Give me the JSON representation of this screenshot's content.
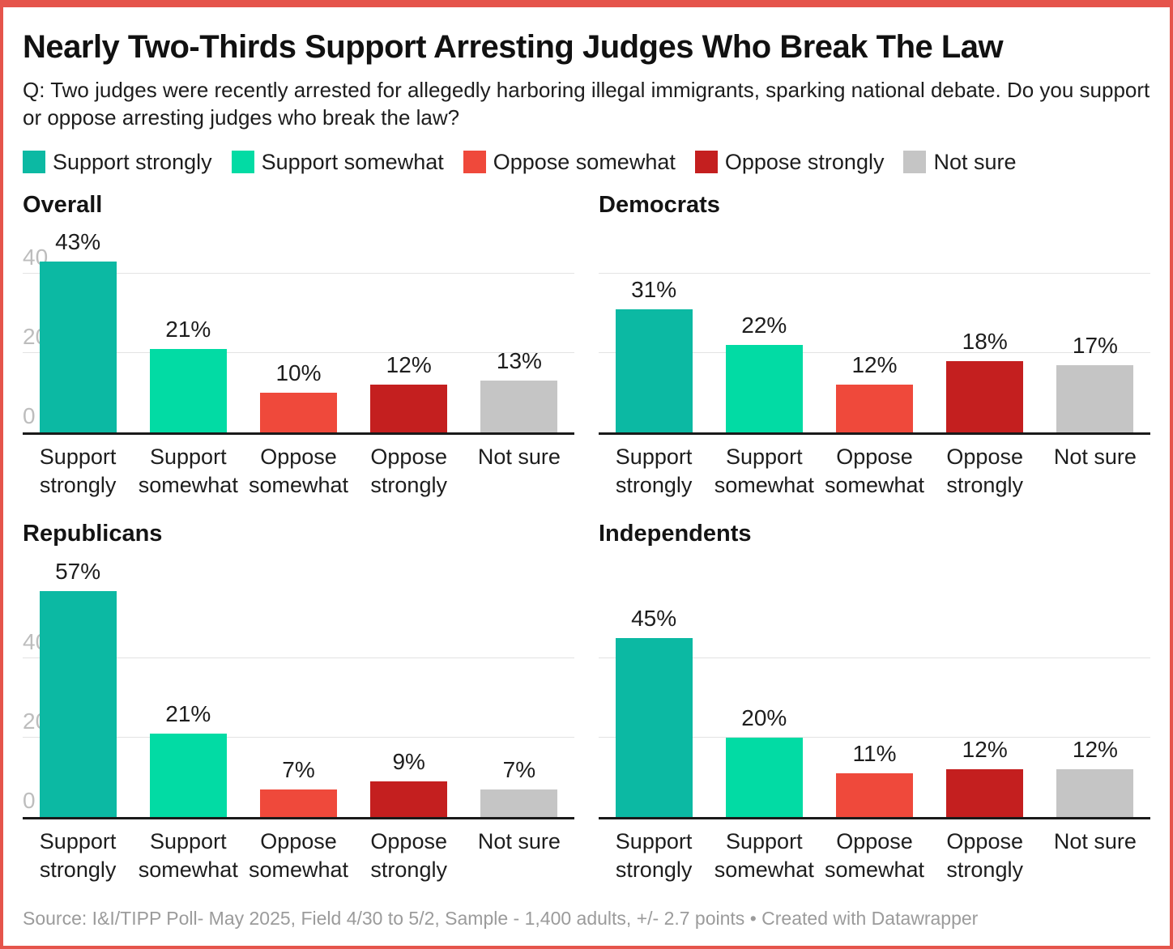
{
  "frame": {
    "border_color": "#e5544b",
    "background": "#ffffff"
  },
  "header": {
    "title": "Nearly Two-Thirds Support Arresting Judges Who Break The Law",
    "question": "Q: Two judges were recently arrested for allegedly harboring illegal immigrants, sparking national debate. Do you support or oppose arresting judges who break the law?"
  },
  "legend": {
    "position": "top",
    "items": [
      {
        "label": "Support strongly",
        "color": "#0cb9a3"
      },
      {
        "label": "Support somewhat",
        "color": "#02dba4"
      },
      {
        "label": "Oppose somewhat",
        "color": "#ef493b"
      },
      {
        "label": "Oppose strongly",
        "color": "#c41f1f"
      },
      {
        "label": "Not sure",
        "color": "#c5c5c5"
      }
    ]
  },
  "chart_data": [
    {
      "type": "bar",
      "title": "Overall",
      "categories": [
        "Support strongly",
        "Support somewhat",
        "Oppose somewhat",
        "Oppose strongly",
        "Not sure"
      ],
      "values": [
        43,
        21,
        10,
        12,
        13
      ],
      "unit": "%",
      "yticks": [
        0,
        20,
        40
      ],
      "ylim": [
        0,
        50
      ],
      "grid": true,
      "show_ytick_labels": true
    },
    {
      "type": "bar",
      "title": "Democrats",
      "categories": [
        "Support strongly",
        "Support somewhat",
        "Oppose somewhat",
        "Oppose strongly",
        "Not sure"
      ],
      "values": [
        31,
        22,
        12,
        18,
        17
      ],
      "unit": "%",
      "yticks": [
        0,
        20,
        40
      ],
      "ylim": [
        0,
        50
      ],
      "grid": true,
      "show_ytick_labels": false
    },
    {
      "type": "bar",
      "title": "Republicans",
      "categories": [
        "Support strongly",
        "Support somewhat",
        "Oppose somewhat",
        "Oppose strongly",
        "Not sure"
      ],
      "values": [
        57,
        21,
        7,
        9,
        7
      ],
      "unit": "%",
      "yticks": [
        0,
        20,
        40
      ],
      "ylim": [
        0,
        60
      ],
      "grid": true,
      "show_ytick_labels": true
    },
    {
      "type": "bar",
      "title": "Independents",
      "categories": [
        "Support strongly",
        "Support somewhat",
        "Oppose somewhat",
        "Oppose strongly",
        "Not sure"
      ],
      "values": [
        45,
        20,
        11,
        12,
        12
      ],
      "unit": "%",
      "yticks": [
        0,
        20,
        40
      ],
      "ylim": [
        0,
        60
      ],
      "grid": true,
      "show_ytick_labels": false
    }
  ],
  "style": {
    "axis_label_color": "#bdbdbd",
    "gridline_color": "#e3e3e3",
    "baseline_color": "#1a1a1a",
    "label_color": "#1d1d1d",
    "footer_color": "#9b9b9b"
  },
  "footer": {
    "source": "Source: I&I/TIPP Poll- May 2025, Field 4/30 to 5/2, Sample - 1,400 adults, +/- 2.7 points",
    "separator": "•",
    "attribution": "Created with Datawrapper"
  }
}
